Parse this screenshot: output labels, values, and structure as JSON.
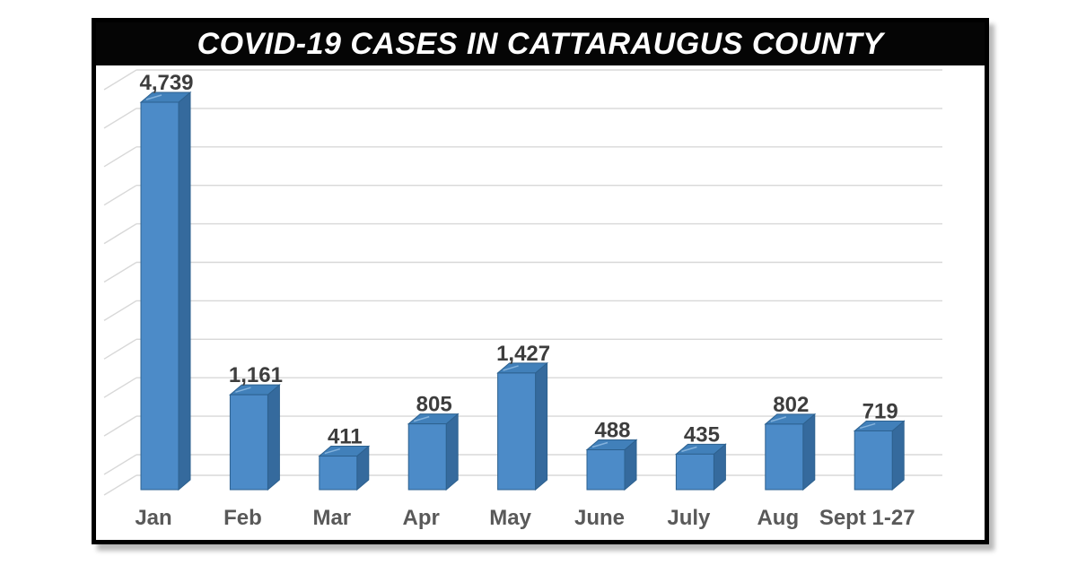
{
  "card": {
    "background": "#ffffff",
    "border_color": "#000000",
    "title_bar_bg": "#050505",
    "title_color": "#ffffff"
  },
  "chart_data": {
    "type": "bar",
    "style": "3d-column",
    "title": "COVID-19 CASES IN CATTARAUGUS COUNTY",
    "xlabel": "",
    "ylabel": "",
    "categories": [
      "Jan",
      "Feb",
      "Mar",
      "Apr",
      "May",
      "June",
      "July",
      "Aug",
      "Sept 1-27"
    ],
    "values": [
      4739,
      1161,
      411,
      805,
      1427,
      488,
      435,
      802,
      719
    ],
    "value_labels": [
      "4,739",
      "1,161",
      "411",
      "805",
      "1,427",
      "488",
      "435",
      "802",
      "719"
    ],
    "ylim": [
      0,
      5000
    ],
    "gridline_step": 500,
    "grid": true,
    "legend": "none",
    "colors": {
      "bar_front": "#4C8BC8",
      "bar_top": "#4180BA",
      "bar_side": "#356A9D",
      "bar_edge": "#2D618F",
      "bar_highlight": "#84B2DC",
      "gridline": "#D8D8D8",
      "value_label": "#3D3D3D",
      "category_label": "#595959"
    }
  }
}
